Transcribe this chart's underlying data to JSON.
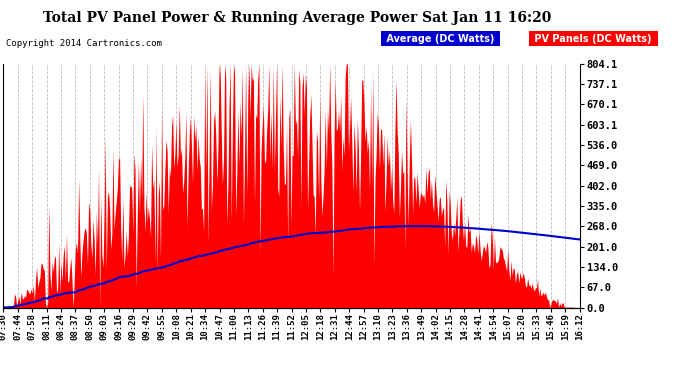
{
  "title": "Total PV Panel Power & Running Average Power Sat Jan 11 16:20",
  "copyright": "Copyright 2014 Cartronics.com",
  "yticks": [
    0.0,
    67.0,
    134.0,
    201.0,
    268.0,
    335.0,
    402.0,
    469.0,
    536.0,
    603.1,
    670.1,
    737.1,
    804.1
  ],
  "ymax": 804.1,
  "ymin": 0.0,
  "bg_color": "#ffffff",
  "plot_bg_color": "#ffffff",
  "grid_color": "#b0b0b0",
  "fill_color": "#ff0000",
  "avg_line_color": "#0000cc",
  "legend_avg_bg": "#0000cc",
  "legend_pv_bg": "#ff0000",
  "legend_avg_text": "Average (DC Watts)",
  "legend_pv_text": "PV Panels (DC Watts)",
  "xtick_labels": [
    "07:30",
    "07:44",
    "07:58",
    "08:11",
    "08:24",
    "08:37",
    "08:50",
    "09:03",
    "09:16",
    "09:29",
    "09:42",
    "09:55",
    "10:08",
    "10:21",
    "10:34",
    "10:47",
    "11:00",
    "11:13",
    "11:26",
    "11:39",
    "11:52",
    "12:05",
    "12:18",
    "12:31",
    "12:44",
    "12:57",
    "13:10",
    "13:23",
    "13:36",
    "13:49",
    "14:02",
    "14:15",
    "14:28",
    "14:41",
    "14:54",
    "15:07",
    "15:20",
    "15:33",
    "15:46",
    "15:59",
    "16:12"
  ]
}
